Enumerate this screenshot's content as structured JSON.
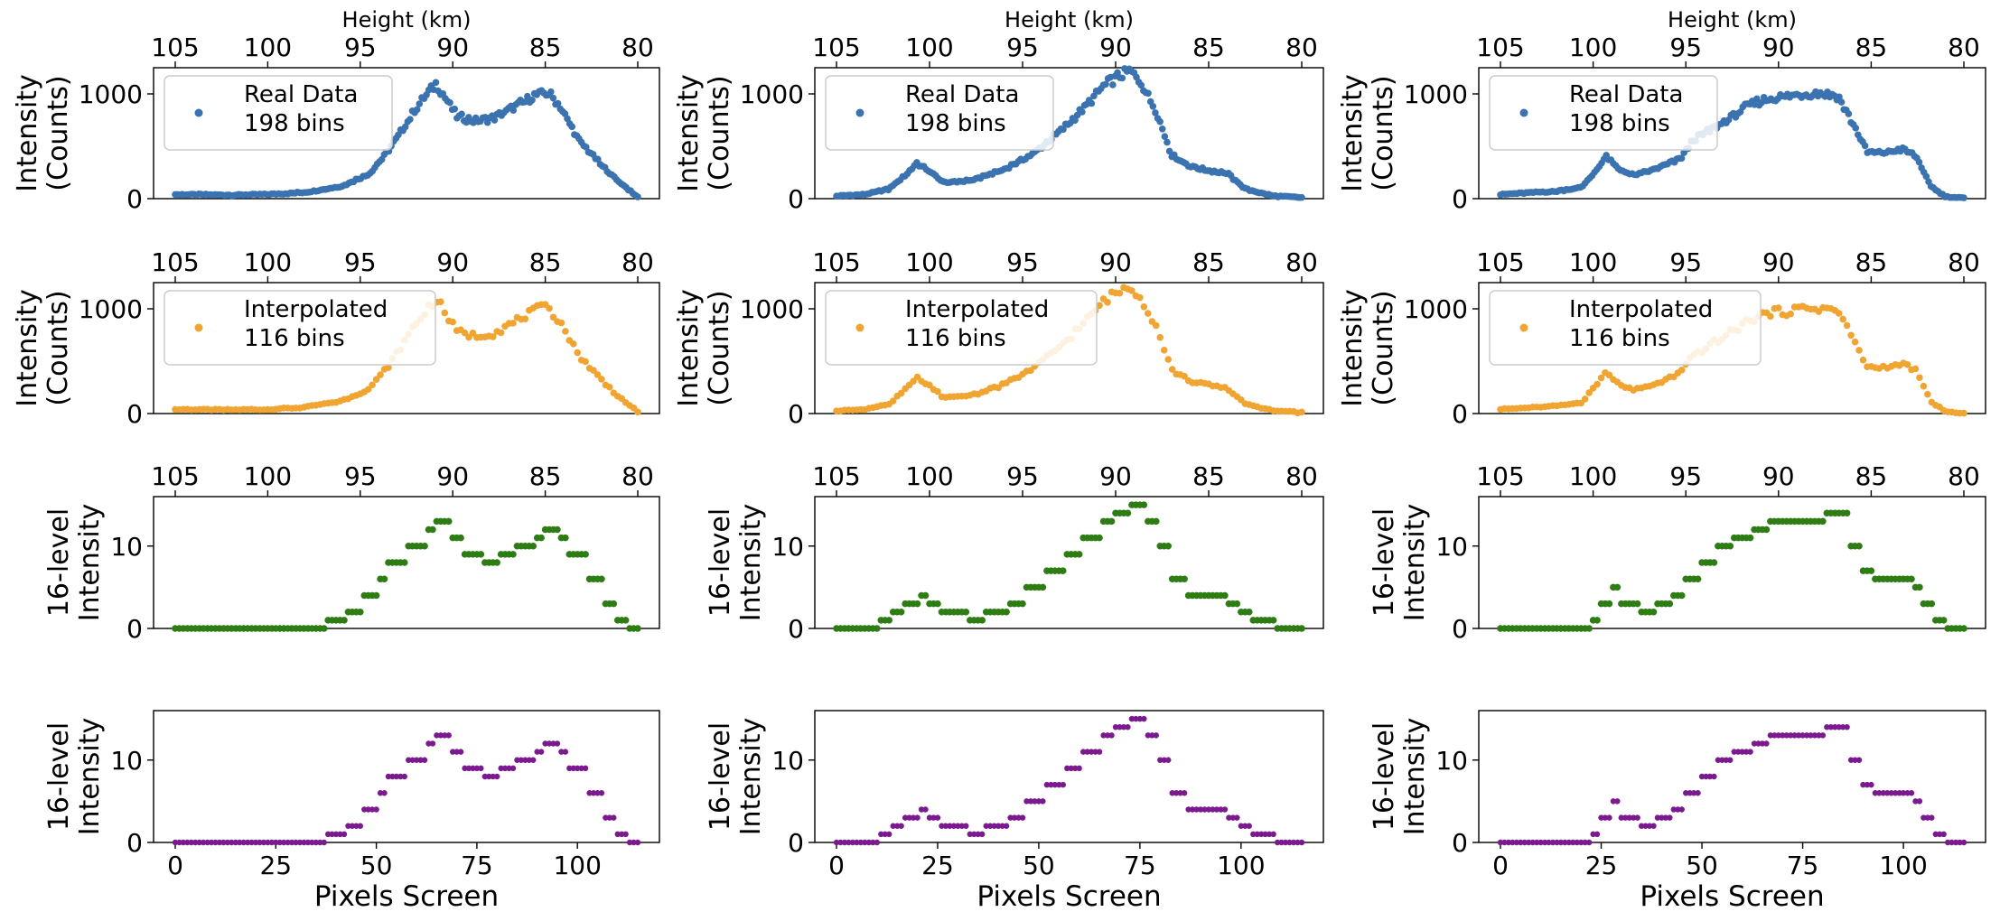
{
  "chart_data": {
    "type": "scatter",
    "layout": "4 rows x 3 columns of scatter panels",
    "shared": {
      "top_axis_label": "Height (km)",
      "top_axis_ticks": [
        "105",
        "100",
        "95",
        "90",
        "85",
        "80"
      ],
      "bottom_axis_label": "Pixels Screen",
      "bottom_axis_ticks": [
        "0",
        "25",
        "50",
        "75",
        "100"
      ],
      "row_ylabels": [
        [
          "Intensity",
          "(Counts)"
        ],
        [
          "Intensity",
          "(Counts)"
        ],
        [
          "16-level",
          "Intensity"
        ],
        [
          "16-level",
          "Intensity"
        ]
      ],
      "row_yticks": [
        [
          "0",
          "1000"
        ],
        [
          "0",
          "1000"
        ],
        [
          "0",
          "10"
        ],
        [
          "0",
          "10"
        ]
      ],
      "row_legends": [
        [
          "Real Data",
          "198 bins"
        ],
        [
          "Interpolated",
          "116 bins"
        ],
        null,
        null
      ],
      "row_colors": [
        "#3a73b0",
        "#f0a532",
        "#2e7d14",
        "#7b1a8f"
      ],
      "row_ylim": [
        [
          0,
          1250
        ],
        [
          0,
          1250
        ],
        [
          0,
          16
        ],
        [
          0,
          16
        ]
      ],
      "x_range": [
        105,
        80
      ]
    },
    "columns": [
      {
        "profile": [
          [
            105.0,
            40
          ],
          [
            102.0,
            35
          ],
          [
            100.0,
            40
          ],
          [
            98.0,
            60
          ],
          [
            96.0,
            120
          ],
          [
            94.5,
            240
          ],
          [
            93.5,
            450
          ],
          [
            92.0,
            860
          ],
          [
            91.2,
            1040
          ],
          [
            90.9,
            1100
          ],
          [
            90.4,
            960
          ],
          [
            89.8,
            790
          ],
          [
            88.8,
            740
          ],
          [
            87.8,
            770
          ],
          [
            86.8,
            860
          ],
          [
            85.5,
            990
          ],
          [
            84.8,
            1010
          ],
          [
            84.2,
            880
          ],
          [
            83.2,
            560
          ],
          [
            81.8,
            290
          ],
          [
            80.8,
            130
          ],
          [
            80.0,
            15
          ]
        ],
        "quant": [
          [
            105.0,
            0
          ],
          [
            98.2,
            0
          ],
          [
            96.8,
            1
          ],
          [
            95.8,
            2
          ],
          [
            94.8,
            4
          ],
          [
            94.0,
            6
          ],
          [
            93.5,
            8
          ],
          [
            92.5,
            10
          ],
          [
            91.5,
            12
          ],
          [
            90.9,
            13
          ],
          [
            90.2,
            11
          ],
          [
            89.4,
            9
          ],
          [
            88.3,
            8
          ],
          [
            87.5,
            9
          ],
          [
            86.6,
            10
          ],
          [
            85.6,
            11
          ],
          [
            85.0,
            12
          ],
          [
            84.3,
            11
          ],
          [
            83.8,
            9
          ],
          [
            82.8,
            6
          ],
          [
            81.8,
            3
          ],
          [
            81.2,
            1
          ],
          [
            80.5,
            0
          ],
          [
            80.0,
            0
          ]
        ]
      },
      {
        "profile": [
          [
            105.0,
            25
          ],
          [
            103.5,
            40
          ],
          [
            102.2,
            90
          ],
          [
            101.2,
            240
          ],
          [
            100.7,
            340
          ],
          [
            100.0,
            260
          ],
          [
            99.2,
            150
          ],
          [
            97.6,
            180
          ],
          [
            96.0,
            280
          ],
          [
            94.5,
            420
          ],
          [
            93.0,
            640
          ],
          [
            91.6,
            880
          ],
          [
            90.6,
            1080
          ],
          [
            89.9,
            1160
          ],
          [
            89.2,
            1220
          ],
          [
            88.6,
            1100
          ],
          [
            87.8,
            830
          ],
          [
            87.0,
            420
          ],
          [
            86.0,
            310
          ],
          [
            85.0,
            270
          ],
          [
            84.0,
            240
          ],
          [
            83.0,
            90
          ],
          [
            81.5,
            25
          ],
          [
            80.0,
            10
          ]
        ],
        "quant": [
          [
            105.0,
            0
          ],
          [
            103.6,
            0
          ],
          [
            102.8,
            1
          ],
          [
            102.0,
            2
          ],
          [
            101.4,
            3
          ],
          [
            100.6,
            4
          ],
          [
            100.1,
            3
          ],
          [
            99.4,
            2
          ],
          [
            98.0,
            1
          ],
          [
            97.0,
            2
          ],
          [
            95.8,
            3
          ],
          [
            94.8,
            5
          ],
          [
            93.8,
            7
          ],
          [
            92.8,
            9
          ],
          [
            91.8,
            11
          ],
          [
            90.8,
            13
          ],
          [
            90.0,
            14
          ],
          [
            89.2,
            15
          ],
          [
            88.4,
            13
          ],
          [
            87.8,
            10
          ],
          [
            87.0,
            6
          ],
          [
            86.2,
            4
          ],
          [
            84.0,
            3
          ],
          [
            83.4,
            2
          ],
          [
            82.8,
            1
          ],
          [
            81.5,
            0
          ],
          [
            80.0,
            0
          ]
        ]
      },
      {
        "profile": [
          [
            105.0,
            40
          ],
          [
            103.5,
            55
          ],
          [
            102.0,
            70
          ],
          [
            100.6,
            110
          ],
          [
            99.8,
            280
          ],
          [
            99.3,
            400
          ],
          [
            98.6,
            280
          ],
          [
            97.8,
            220
          ],
          [
            96.5,
            290
          ],
          [
            95.3,
            380
          ],
          [
            94.6,
            560
          ],
          [
            93.8,
            640
          ],
          [
            92.5,
            780
          ],
          [
            91.5,
            900
          ],
          [
            90.5,
            960
          ],
          [
            89.7,
            970
          ],
          [
            88.8,
            1000
          ],
          [
            87.8,
            1010
          ],
          [
            86.8,
            980
          ],
          [
            86.0,
            720
          ],
          [
            85.2,
            440
          ],
          [
            84.3,
            440
          ],
          [
            83.3,
            470
          ],
          [
            82.6,
            410
          ],
          [
            81.8,
            120
          ],
          [
            81.0,
            20
          ],
          [
            80.0,
            5
          ]
        ],
        "quant": [
          [
            105.0,
            0
          ],
          [
            100.8,
            0
          ],
          [
            100.2,
            1
          ],
          [
            99.6,
            3
          ],
          [
            99.0,
            5
          ],
          [
            98.5,
            3
          ],
          [
            97.4,
            2
          ],
          [
            96.6,
            3
          ],
          [
            95.8,
            4
          ],
          [
            95.0,
            6
          ],
          [
            94.2,
            8
          ],
          [
            93.4,
            10
          ],
          [
            92.5,
            11
          ],
          [
            91.5,
            12
          ],
          [
            90.5,
            13
          ],
          [
            89.4,
            13
          ],
          [
            88.5,
            13
          ],
          [
            87.6,
            14
          ],
          [
            86.8,
            14
          ],
          [
            86.3,
            10
          ],
          [
            85.6,
            7
          ],
          [
            84.8,
            6
          ],
          [
            83.4,
            6
          ],
          [
            82.8,
            5
          ],
          [
            82.2,
            3
          ],
          [
            81.6,
            1
          ],
          [
            81.0,
            0
          ],
          [
            80.0,
            0
          ]
        ]
      }
    ]
  }
}
